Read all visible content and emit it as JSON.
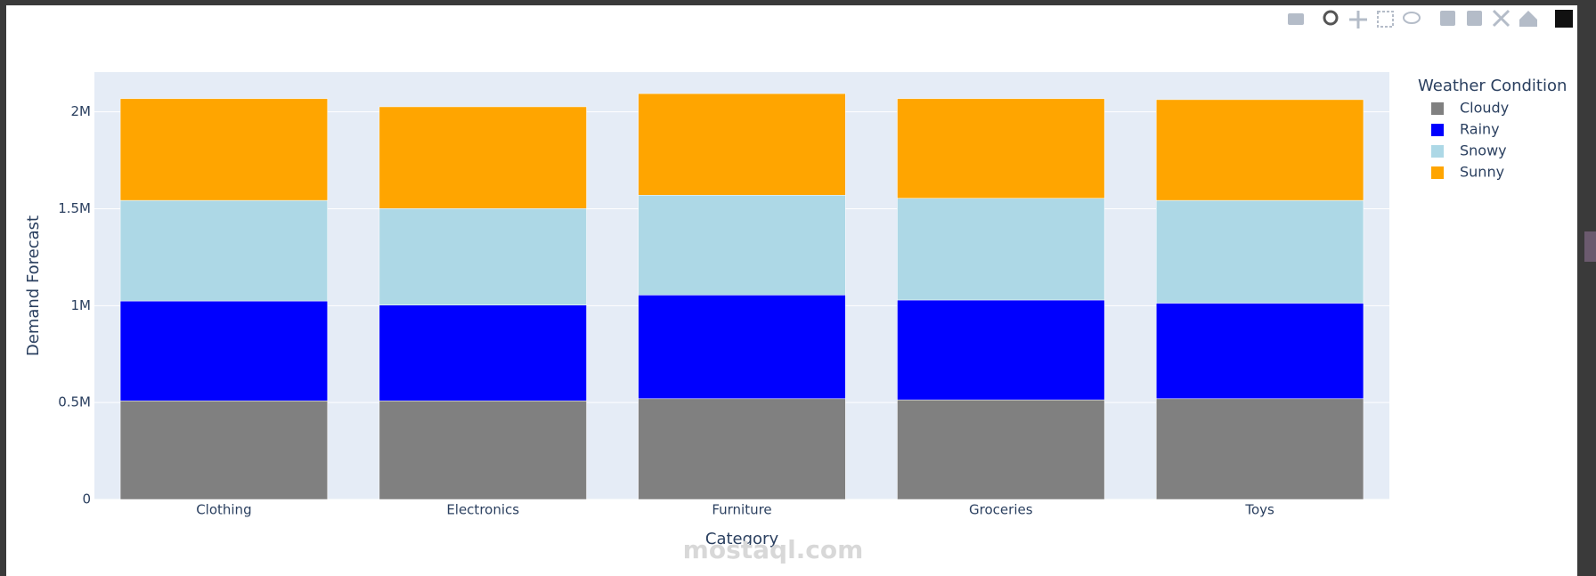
{
  "chart_data": {
    "type": "stacked_bar",
    "categories": [
      "Clothing",
      "Electronics",
      "Furniture",
      "Groceries",
      "Toys"
    ],
    "series": [
      {
        "name": "Cloudy",
        "color": "#808080",
        "values": [
          509000,
          509000,
          520000,
          514000,
          520000
        ]
      },
      {
        "name": "Rainy",
        "color": "#0000ff",
        "values": [
          515000,
          494000,
          535000,
          515000,
          493000
        ]
      },
      {
        "name": "Snowy",
        "color": "#add8e6",
        "values": [
          519000,
          498000,
          515000,
          525000,
          530000
        ]
      },
      {
        "name": "Sunny",
        "color": "#ffa500",
        "values": [
          525000,
          525000,
          524000,
          514000,
          520000
        ]
      }
    ],
    "x_label": "Category",
    "y_label": "Demand Forecast",
    "legend_title": "Weather Condition",
    "ylim": [
      0,
      2205000
    ],
    "yticks": [
      0,
      {
        "value": 500000,
        "label": "0.5M"
      },
      {
        "value": 1000000,
        "label": "1M"
      },
      {
        "value": 1500000,
        "label": "1.5M"
      },
      {
        "value": 2000000,
        "label": "2M"
      }
    ],
    "grid": true,
    "legend_position": "right",
    "watermark": "mostaql.com"
  }
}
